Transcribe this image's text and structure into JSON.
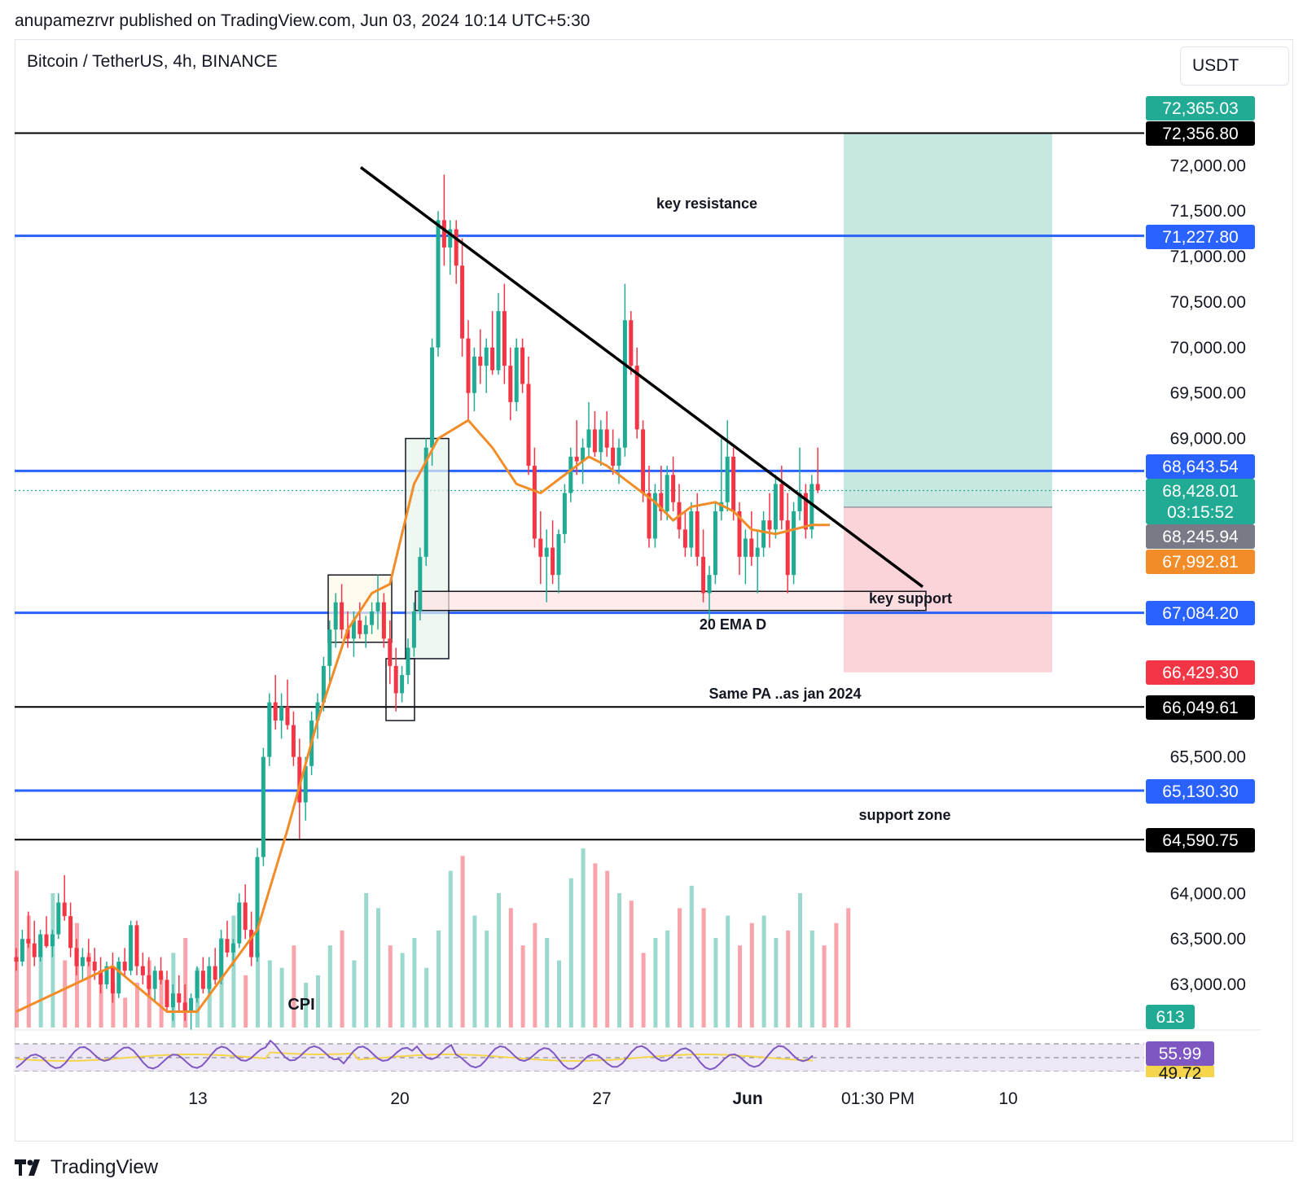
{
  "header": {
    "attribution": "anupamezrvr published on TradingView.com, Jun 03, 2024 10:14 UTC+5:30"
  },
  "symbol": {
    "title": "Bitcoin / TetherUS, 4h, BINANCE",
    "currency": "USDT"
  },
  "footer": {
    "brand": "TradingView"
  },
  "colors": {
    "up": "#22ab94",
    "down": "#f23645",
    "ema": "#f28c28",
    "level": "#2962ff",
    "target": "#c7e8e1",
    "stop": "#fad4d8"
  },
  "chart_data": {
    "type": "candlestick",
    "title": "Bitcoin / TetherUS, 4h, BINANCE",
    "y_axis_ticks": [
      "72,000.00",
      "71,500.00",
      "71,000.00",
      "70,500.00",
      "70,000.00",
      "69,500.00",
      "69,000.00",
      "65,500.00",
      "64,000.00",
      "63,500.00",
      "63,000.00"
    ],
    "x_axis_ticks": [
      "13",
      "20",
      "27",
      "Jun",
      "01:30 PM",
      "10"
    ],
    "price_labels": [
      {
        "text": "72,365.03",
        "value": 72365.03,
        "color": "#22ab94"
      },
      {
        "text": "72,356.80",
        "value": 72356.8,
        "color": "#000000"
      },
      {
        "text": "71,227.80",
        "value": 71227.8,
        "color": "#2962ff"
      },
      {
        "text": "68,643.54",
        "value": 68643.54,
        "color": "#2962ff"
      },
      {
        "text": "68,428.01",
        "value": 68428.01,
        "color": "#22ab94",
        "sub": "03:15:52"
      },
      {
        "text": "68,245.94",
        "value": 68245.94,
        "color": "#787b86"
      },
      {
        "text": "67,992.81",
        "value": 67992.81,
        "color": "#f28c28"
      },
      {
        "text": "67,084.20",
        "value": 67084.2,
        "color": "#2962ff"
      },
      {
        "text": "66,429.30",
        "value": 66429.3,
        "color": "#f23645"
      },
      {
        "text": "66,049.61",
        "value": 66049.61,
        "color": "#000000"
      },
      {
        "text": "65,130.30",
        "value": 65130.3,
        "color": "#2962ff"
      },
      {
        "text": "64,590.75",
        "value": 64590.75,
        "color": "#000000"
      }
    ],
    "volume_label": "613",
    "rsi_labels": [
      "55.99",
      "49.72"
    ],
    "annotations": [
      "key resistance",
      "key support",
      "20 EMA D",
      "Same PA ..as jan 2024",
      "support zone",
      "CPI"
    ],
    "horizontal_levels": [
      {
        "value": 72356.8,
        "color": "#000000"
      },
      {
        "value": 71227.8,
        "color": "#2962ff"
      },
      {
        "value": 68643.54,
        "color": "#2962ff"
      },
      {
        "value": 67084.2,
        "color": "#2962ff"
      },
      {
        "value": 66049.61,
        "color": "#000000"
      },
      {
        "value": 65130.3,
        "color": "#2962ff"
      },
      {
        "value": 64590.75,
        "color": "#000000"
      }
    ],
    "position": {
      "entry": 68245.94,
      "target": 72356.8,
      "stop": 66429.3
    },
    "ema": [
      [
        0,
        62700
      ],
      [
        32,
        63200
      ],
      [
        50,
        62700
      ],
      [
        60,
        62700
      ],
      [
        80,
        63600
      ],
      [
        90,
        64700
      ],
      [
        100,
        65900
      ],
      [
        110,
        66900
      ],
      [
        118,
        67300
      ],
      [
        124,
        67400
      ],
      [
        132,
        68500
      ],
      [
        140,
        69000
      ],
      [
        150,
        69200
      ],
      [
        158,
        68900
      ],
      [
        166,
        68500
      ],
      [
        174,
        68400
      ],
      [
        182,
        68600
      ],
      [
        186,
        68700
      ],
      [
        190,
        68800
      ],
      [
        196,
        68700
      ],
      [
        204,
        68500
      ],
      [
        212,
        68300
      ],
      [
        218,
        68100
      ],
      [
        224,
        68250
      ],
      [
        232,
        68300
      ],
      [
        238,
        68200
      ],
      [
        244,
        68000
      ],
      [
        252,
        67950
      ],
      [
        258,
        68000
      ],
      [
        264,
        68050
      ],
      [
        270,
        68050
      ]
    ],
    "candles": [
      [
        0,
        63300,
        63400,
        63150,
        63250
      ],
      [
        2,
        63250,
        63600,
        63200,
        63500
      ],
      [
        4,
        63500,
        63800,
        63400,
        63450
      ],
      [
        6,
        63450,
        63700,
        63200,
        63300
      ],
      [
        8,
        63300,
        63600,
        63250,
        63550
      ],
      [
        10,
        63550,
        63750,
        63400,
        63420
      ],
      [
        12,
        63420,
        63600,
        63300,
        63550
      ],
      [
        14,
        63550,
        64000,
        63500,
        63900
      ],
      [
        16,
        63900,
        64200,
        63700,
        63750
      ],
      [
        18,
        63750,
        63900,
        63300,
        63400
      ],
      [
        20,
        63400,
        63500,
        63100,
        63200
      ],
      [
        22,
        63200,
        63400,
        63050,
        63300
      ],
      [
        24,
        63300,
        63500,
        63200,
        63250
      ],
      [
        26,
        63250,
        63400,
        63050,
        63150
      ],
      [
        28,
        63150,
        63300,
        62900,
        63000
      ],
      [
        30,
        63000,
        63250,
        62950,
        63200
      ],
      [
        32,
        63200,
        63350,
        62800,
        62900
      ],
      [
        34,
        62900,
        63300,
        62850,
        63250
      ],
      [
        36,
        63250,
        63400,
        63100,
        63150
      ],
      [
        38,
        63150,
        63700,
        63100,
        63650
      ],
      [
        40,
        63650,
        63700,
        63100,
        63200
      ],
      [
        42,
        63200,
        63350,
        63000,
        63100
      ],
      [
        44,
        63100,
        63300,
        62850,
        62950
      ],
      [
        46,
        62950,
        63200,
        62800,
        63150
      ],
      [
        48,
        63150,
        63300,
        63000,
        63050
      ],
      [
        50,
        63050,
        63150,
        62700,
        62750
      ],
      [
        52,
        62750,
        63000,
        62600,
        62900
      ],
      [
        54,
        62900,
        63100,
        62700,
        62800
      ],
      [
        56,
        62800,
        63000,
        62600,
        62700
      ],
      [
        58,
        62700,
        62900,
        62500,
        62850
      ],
      [
        60,
        62850,
        63200,
        62800,
        63150
      ],
      [
        62,
        63150,
        63300,
        62900,
        62950
      ],
      [
        64,
        62950,
        63300,
        62900,
        63200
      ],
      [
        66,
        63200,
        63400,
        63000,
        63050
      ],
      [
        68,
        63050,
        63600,
        63000,
        63500
      ],
      [
        70,
        63500,
        63700,
        63300,
        63350
      ],
      [
        72,
        63350,
        63500,
        63200,
        63450
      ],
      [
        74,
        63450,
        64000,
        63400,
        63900
      ],
      [
        76,
        63900,
        64100,
        63500,
        63600
      ],
      [
        78,
        63600,
        63800,
        63200,
        63300
      ],
      [
        80,
        63300,
        64500,
        63250,
        64400
      ],
      [
        82,
        64400,
        65600,
        64300,
        65500
      ],
      [
        84,
        65500,
        66200,
        65400,
        66100
      ],
      [
        86,
        66100,
        66400,
        65800,
        65900
      ],
      [
        88,
        65900,
        66200,
        65700,
        66050
      ],
      [
        90,
        66050,
        66350,
        65800,
        65850
      ],
      [
        92,
        65850,
        66000,
        65400,
        65500
      ],
      [
        94,
        65500,
        65700,
        64600,
        65000
      ],
      [
        96,
        65000,
        65500,
        64800,
        65400
      ],
      [
        98,
        65400,
        66000,
        65300,
        65900
      ],
      [
        100,
        65900,
        66200,
        65700,
        66100
      ],
      [
        102,
        66100,
        66600,
        66000,
        66500
      ],
      [
        104,
        66500,
        67000,
        66300,
        66900
      ],
      [
        106,
        66900,
        67300,
        66700,
        67200
      ],
      [
        108,
        67200,
        67400,
        66800,
        66900
      ],
      [
        110,
        66900,
        67100,
        66700,
        66800
      ],
      [
        112,
        66800,
        67100,
        66600,
        67000
      ],
      [
        114,
        67000,
        67200,
        66800,
        66850
      ],
      [
        116,
        66850,
        67050,
        66700,
        66950
      ],
      [
        118,
        66950,
        67200,
        66850,
        67100
      ],
      [
        120,
        67100,
        67500,
        66900,
        67200
      ],
      [
        122,
        67200,
        67300,
        66700,
        66800
      ],
      [
        124,
        66800,
        67000,
        66300,
        66500
      ],
      [
        126,
        66500,
        66700,
        66000,
        66200
      ],
      [
        128,
        66200,
        66500,
        66100,
        66400
      ],
      [
        130,
        66400,
        66800,
        66300,
        66700
      ],
      [
        132,
        66700,
        67200,
        66600,
        67100
      ],
      [
        134,
        67100,
        67800,
        67000,
        67700
      ],
      [
        136,
        67700,
        69000,
        67600,
        68900
      ],
      [
        138,
        68900,
        70100,
        68700,
        70000
      ],
      [
        140,
        70000,
        71500,
        69900,
        71400
      ],
      [
        142,
        71400,
        71900,
        70900,
        71100
      ],
      [
        144,
        71100,
        71400,
        70800,
        71300
      ],
      [
        146,
        71300,
        71400,
        70700,
        70900
      ],
      [
        148,
        70900,
        71200,
        69900,
        70100
      ],
      [
        150,
        70100,
        70300,
        69200,
        69500
      ],
      [
        152,
        69500,
        70000,
        69300,
        69900
      ],
      [
        154,
        69900,
        70200,
        69600,
        69800
      ],
      [
        156,
        69800,
        70100,
        69500,
        70000
      ],
      [
        158,
        70000,
        70400,
        69700,
        69750
      ],
      [
        160,
        69750,
        70600,
        69700,
        70400
      ],
      [
        162,
        70400,
        70700,
        69600,
        69800
      ],
      [
        164,
        69800,
        70000,
        69200,
        69400
      ],
      [
        166,
        69400,
        70100,
        69300,
        70000
      ],
      [
        168,
        70000,
        70100,
        69500,
        69600
      ],
      [
        170,
        69600,
        69900,
        68600,
        68700
      ],
      [
        172,
        68700,
        68900,
        67800,
        67900
      ],
      [
        174,
        67900,
        68200,
        67400,
        67700
      ],
      [
        176,
        67700,
        68000,
        67200,
        67800
      ],
      [
        178,
        67800,
        68100,
        67400,
        67500
      ],
      [
        180,
        67500,
        68000,
        67300,
        67950
      ],
      [
        182,
        67950,
        68500,
        67850,
        68400
      ],
      [
        184,
        68400,
        68900,
        68300,
        68800
      ],
      [
        186,
        68800,
        69200,
        68600,
        68750
      ],
      [
        188,
        68750,
        69000,
        68500,
        68900
      ],
      [
        190,
        68900,
        69400,
        68800,
        69100
      ],
      [
        192,
        69100,
        69300,
        68800,
        68850
      ],
      [
        194,
        68850,
        69200,
        68700,
        69100
      ],
      [
        196,
        69100,
        69300,
        68800,
        68900
      ],
      [
        198,
        68900,
        69100,
        68600,
        68700
      ],
      [
        200,
        68700,
        69000,
        68500,
        68900
      ],
      [
        202,
        68900,
        70700,
        68800,
        70300
      ],
      [
        204,
        70300,
        70400,
        69700,
        69800
      ],
      [
        206,
        69800,
        70000,
        69000,
        69100
      ],
      [
        208,
        69100,
        69200,
        68300,
        68400
      ],
      [
        210,
        68400,
        68700,
        67800,
        67900
      ],
      [
        212,
        67900,
        68500,
        67800,
        68400
      ],
      [
        214,
        68400,
        68700,
        68100,
        68200
      ],
      [
        216,
        68200,
        68700,
        68100,
        68600
      ],
      [
        218,
        68600,
        68800,
        68200,
        68300
      ],
      [
        220,
        68300,
        68500,
        67900,
        68000
      ],
      [
        222,
        68000,
        68200,
        67700,
        67800
      ],
      [
        224,
        67800,
        68300,
        67700,
        68200
      ],
      [
        226,
        68200,
        68400,
        67600,
        67700
      ],
      [
        228,
        67700,
        68000,
        67200,
        67300
      ],
      [
        230,
        67300,
        67600,
        67000,
        67500
      ],
      [
        232,
        67500,
        68300,
        67400,
        68200
      ],
      [
        234,
        68200,
        69000,
        68100,
        68300
      ],
      [
        236,
        68300,
        69200,
        68200,
        68800
      ],
      [
        238,
        68800,
        68900,
        68100,
        68200
      ],
      [
        240,
        68200,
        68300,
        67500,
        67700
      ],
      [
        242,
        67700,
        68000,
        67400,
        67900
      ],
      [
        244,
        67900,
        68200,
        67600,
        67700
      ],
      [
        246,
        67700,
        68000,
        67300,
        67800
      ],
      [
        248,
        67800,
        68200,
        67700,
        68100
      ],
      [
        250,
        68100,
        68400,
        67800,
        68000
      ],
      [
        252,
        68000,
        68600,
        67900,
        68500
      ],
      [
        254,
        68500,
        68700,
        68000,
        68100
      ],
      [
        256,
        68100,
        68400,
        67300,
        67500
      ],
      [
        258,
        67500,
        68300,
        67400,
        68200
      ],
      [
        260,
        68200,
        68900,
        68100,
        68400
      ],
      [
        262,
        68400,
        68500,
        67900,
        68000
      ],
      [
        264,
        68000,
        68600,
        67900,
        68500
      ],
      [
        266,
        68500,
        68900,
        68400,
        68430
      ]
    ],
    "volume": [
      210,
      150,
      120,
      180,
      90,
      140,
      100,
      70,
      60,
      40,
      60,
      90,
      70,
      100,
      120,
      80,
      60,
      120,
      150,
      70,
      100,
      90,
      80,
      110,
      60,
      70,
      110,
      130,
      90,
      180,
      160,
      110,
      100,
      120,
      80,
      130,
      210,
      230,
      150,
      130,
      180,
      160,
      110,
      140,
      120,
      90,
      200,
      240,
      220,
      210,
      180,
      170,
      100,
      120,
      130,
      160,
      190,
      160,
      120,
      150,
      110,
      140,
      150,
      120,
      130,
      180,
      130,
      110,
      140,
      160
    ]
  }
}
